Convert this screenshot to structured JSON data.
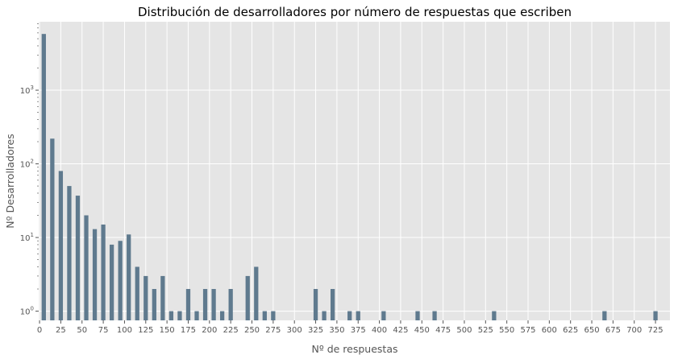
{
  "chart_data": {
    "type": "bar",
    "title": "Distribución de desarrolladores por número de respuestas que escriben",
    "xlabel": "Nº de respuestas",
    "ylabel": "Nº Desarrolladores",
    "yscale": "log",
    "ylim": [
      0.75,
      8500
    ],
    "xlim": [
      -1,
      742
    ],
    "grid": true,
    "bar_width": 5,
    "bar_color": "#5f7a8e",
    "background_color": "#e5e5e5",
    "grid_color": "#ffffff",
    "x_ticks": [
      "0",
      "25",
      "50",
      "75",
      "100",
      "125",
      "150",
      "175",
      "200",
      "225",
      "250",
      "275",
      "300",
      "325",
      "350",
      "375",
      "400",
      "425",
      "450",
      "475",
      "500",
      "525",
      "550",
      "575",
      "600",
      "625",
      "650",
      "675",
      "700",
      "725"
    ],
    "y_ticks": [
      {
        "value": 1,
        "base": "10",
        "exp": "0"
      },
      {
        "value": 10,
        "base": "10",
        "exp": "1"
      },
      {
        "value": 100,
        "base": "10",
        "exp": "2"
      },
      {
        "value": 1000,
        "base": "10",
        "exp": "3"
      }
    ],
    "points": [
      {
        "x": 5,
        "y": 5800
      },
      {
        "x": 15,
        "y": 220
      },
      {
        "x": 25,
        "y": 80
      },
      {
        "x": 35,
        "y": 50
      },
      {
        "x": 45,
        "y": 37
      },
      {
        "x": 55,
        "y": 20
      },
      {
        "x": 65,
        "y": 13
      },
      {
        "x": 75,
        "y": 15
      },
      {
        "x": 85,
        "y": 8
      },
      {
        "x": 95,
        "y": 9
      },
      {
        "x": 105,
        "y": 11
      },
      {
        "x": 115,
        "y": 4
      },
      {
        "x": 125,
        "y": 3
      },
      {
        "x": 135,
        "y": 2
      },
      {
        "x": 145,
        "y": 3
      },
      {
        "x": 155,
        "y": 1
      },
      {
        "x": 165,
        "y": 1
      },
      {
        "x": 175,
        "y": 2
      },
      {
        "x": 185,
        "y": 1
      },
      {
        "x": 195,
        "y": 2
      },
      {
        "x": 205,
        "y": 2
      },
      {
        "x": 215,
        "y": 1
      },
      {
        "x": 225,
        "y": 2
      },
      {
        "x": 245,
        "y": 3
      },
      {
        "x": 255,
        "y": 4
      },
      {
        "x": 265,
        "y": 1
      },
      {
        "x": 275,
        "y": 1
      },
      {
        "x": 325,
        "y": 2
      },
      {
        "x": 335,
        "y": 1
      },
      {
        "x": 345,
        "y": 2
      },
      {
        "x": 365,
        "y": 1
      },
      {
        "x": 375,
        "y": 1
      },
      {
        "x": 405,
        "y": 1
      },
      {
        "x": 445,
        "y": 1
      },
      {
        "x": 465,
        "y": 1
      },
      {
        "x": 535,
        "y": 1
      },
      {
        "x": 665,
        "y": 1
      },
      {
        "x": 725,
        "y": 1
      }
    ]
  }
}
